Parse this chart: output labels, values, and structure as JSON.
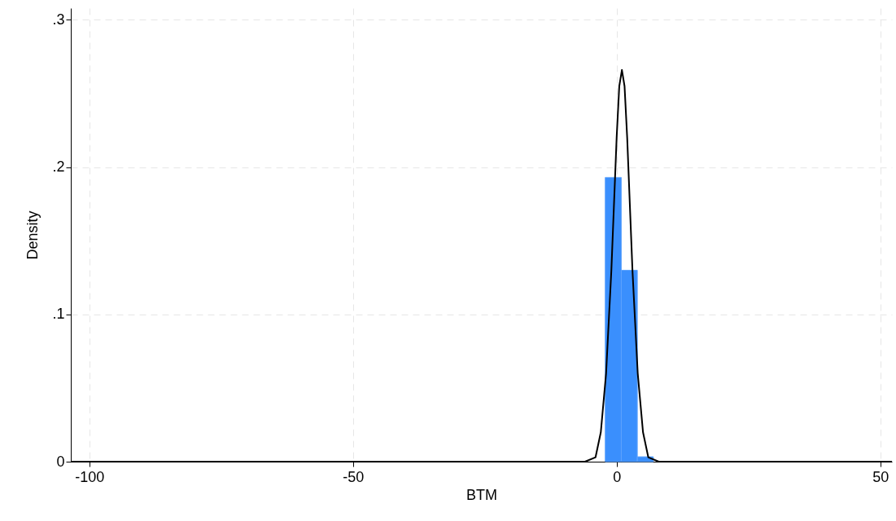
{
  "chart_data": {
    "type": "histogram",
    "xlabel": "BTM",
    "ylabel": "Density",
    "bins": [
      -2.16,
      0.88,
      3.92,
      6.96
    ],
    "values": [
      0.193,
      0.13,
      0.0033
    ],
    "color": "#3a8ffd",
    "series": [
      {
        "type": "line",
        "color": "#000000",
        "x": [
          -103.5,
          -6,
          -4,
          -3,
          -2,
          -1,
          0,
          0.5,
          1,
          1.5,
          2,
          3,
          4,
          5,
          6,
          8,
          52.2
        ],
        "values": [
          0,
          0,
          0.003,
          0.02,
          0.06,
          0.13,
          0.22,
          0.255,
          0.266,
          0.255,
          0.22,
          0.13,
          0.06,
          0.02,
          0.003,
          0,
          0
        ]
      }
    ],
    "xlim": [
      -103.5,
      52.2
    ],
    "ylim": [
      0,
      0.308
    ],
    "xticks": [
      -100,
      -50,
      0,
      50
    ],
    "yticks": [
      0,
      {
        "value": 0.1,
        "label": ".1"
      },
      {
        "value": 0.2,
        "label": ".2"
      },
      {
        "value": 0.3,
        "label": ".3"
      }
    ],
    "grid": true,
    "marker": "none",
    "line_style": "solid"
  }
}
